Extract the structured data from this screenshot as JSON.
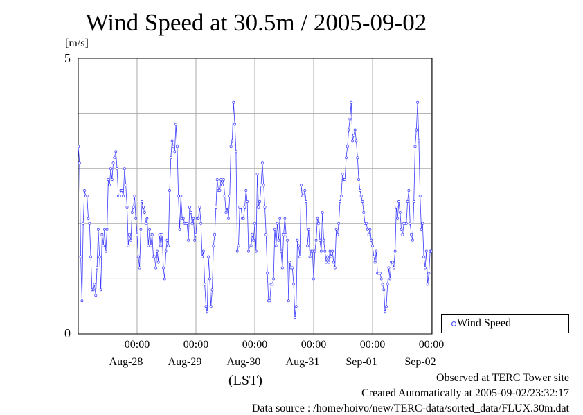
{
  "chart_data": {
    "type": "line",
    "title": "Wind Speed at 30.5m / 2005-09-02",
    "ylabel": "[m/s]",
    "xlabel": "(LST)",
    "ylim": [
      0,
      5
    ],
    "y_tick_labels": [
      "0",
      "5"
    ],
    "x_ticks": [
      {
        "time": "00:00",
        "date": "Aug-28"
      },
      {
        "time": "00:00",
        "date": "Aug-29"
      },
      {
        "time": "00:00",
        "date": "Aug-30"
      },
      {
        "time": "00:00",
        "date": "Aug-31"
      },
      {
        "time": "00:00",
        "date": "Sep-01"
      },
      {
        "time": "00:00",
        "date": "Sep-02"
      }
    ],
    "grid": true,
    "legend_position": "right-bottom",
    "series": [
      {
        "name": "Wind Speed",
        "color": "#3a3aff",
        "marker": "open-circle",
        "x_range_days": [
          "2005-08-27 00:00",
          "2005-09-02 23:30"
        ],
        "values": [
          3.4,
          3.1,
          1.4,
          0.6,
          2.0,
          2.6,
          2.5,
          2.5,
          2.1,
          2.0,
          1.4,
          0.8,
          0.8,
          0.9,
          0.7,
          1.2,
          1.9,
          1.4,
          0.8,
          1.8,
          1.6,
          1.9,
          1.5,
          1.9,
          2.8,
          2.7,
          3.0,
          2.8,
          3.1,
          3.2,
          3.3,
          3.0,
          2.5,
          2.5,
          2.6,
          2.6,
          2.5,
          3.0,
          2.7,
          2.3,
          1.6,
          1.8,
          1.7,
          2.2,
          2.3,
          2.5,
          2.1,
          1.8,
          1.4,
          1.2,
          1.9,
          2.4,
          2.3,
          2.2,
          2.0,
          2.1,
          1.6,
          1.9,
          1.6,
          1.8,
          1.4,
          1.4,
          1.2,
          1.5,
          1.3,
          1.8,
          1.6,
          1.8,
          1.2,
          1.0,
          1.5,
          1.7,
          1.6,
          2.6,
          3.2,
          3.5,
          3.4,
          3.3,
          3.8,
          3.4,
          2.5,
          1.9,
          2.5,
          2.1,
          2.1,
          2.0,
          2.0,
          2.0,
          1.7,
          2.3,
          2.2,
          2.0,
          2.1,
          1.7,
          1.8,
          2.1,
          2.1,
          2.3,
          2.0,
          1.4,
          1.5,
          0.9,
          0.5,
          0.4,
          1.4,
          1.0,
          0.5,
          0.8,
          1.6,
          1.8,
          2.3,
          2.8,
          2.6,
          2.6,
          2.8,
          2.7,
          2.8,
          2.5,
          2.2,
          2.3,
          2.1,
          2.5,
          3.4,
          3.5,
          4.2,
          3.8,
          3.3,
          1.5,
          1.6,
          2.3,
          2.3,
          2.1,
          2.1,
          2.3,
          2.6,
          2.4,
          1.5,
          1.6,
          1.6,
          1.8,
          1.7,
          2.0,
          1.5,
          2.9,
          2.3,
          2.4,
          2.7,
          3.1,
          2.7,
          2.3,
          1.8,
          1.1,
          0.6,
          0.6,
          0.9,
          0.9,
          1.0,
          1.9,
          1.6,
          2.0,
          1.7,
          2.1,
          1.5,
          1.2,
          1.8,
          2.1,
          1.8,
          1.7,
          0.6,
          1.3,
          1.2,
          1.2,
          0.9,
          0.3,
          0.5,
          1.7,
          1.6,
          1.4,
          2.7,
          2.5,
          2.5,
          2.6,
          2.4,
          1.6,
          1.9,
          1.4,
          1.5,
          1.5,
          1.0,
          1.5,
          1.7,
          2.1,
          2.0,
          1.7,
          1.5,
          2.2,
          1.7,
          1.5,
          1.3,
          1.4,
          1.3,
          1.5,
          1.4,
          1.5,
          1.3,
          1.2,
          1.9,
          1.8,
          2.0,
          2.4,
          2.5,
          2.9,
          2.8,
          2.8,
          3.2,
          3.4,
          3.7,
          3.9,
          4.2,
          3.5,
          3.6,
          3.7,
          3.5,
          3.2,
          2.8,
          2.6,
          2.5,
          2.4,
          2.2,
          2.0,
          2.0,
          1.9,
          1.8,
          1.9,
          1.7,
          1.6,
          1.4,
          1.3,
          1.5,
          1.1,
          1.1,
          1.1,
          1.0,
          0.9,
          0.8,
          0.4,
          0.5,
          0.9,
          1.2,
          1.0,
          1.3,
          1.3,
          1.2,
          1.5,
          2.3,
          2.1,
          2.4,
          2.2,
          1.9,
          1.8,
          2.0,
          2.0,
          2.0,
          2.4,
          2.6,
          2.0,
          1.8,
          1.7,
          2.4,
          3.4,
          3.7,
          4.2,
          3.5,
          2.5,
          1.9,
          2.0,
          1.4,
          1.2,
          1.5,
          0.9,
          1.1,
          1.5,
          1.5
        ]
      }
    ]
  },
  "footer": {
    "line1": "Observed at TERC Tower site",
    "line2": "Created Automatically at 2005-09-02/23:32:17",
    "line3": "Data source : /home/hoivo/new/TERC-data/sorted_data/FLUX.30m.dat"
  }
}
